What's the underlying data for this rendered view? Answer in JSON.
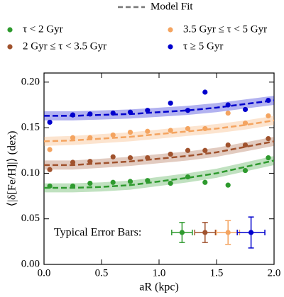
{
  "chart_data": {
    "type": "scatter",
    "xlabel": "aR (kpc)",
    "ylabel": "⟨|δ[Fe/H]|⟩ (dex)",
    "fit_label": "Model Fit",
    "annotation": "Typical Error Bars:",
    "xlim": [
      0,
      2
    ],
    "ylim": [
      0,
      0.21
    ],
    "xticks": [
      {
        "value": 0,
        "label": "0.0"
      },
      0.5,
      {
        "value": 1,
        "label": "1.0"
      },
      1.5,
      {
        "value": 2,
        "label": "2.0"
      }
    ],
    "yticks": [
      {
        "value": 0,
        "label": "0.00"
      },
      0.05,
      {
        "value": 0.1,
        "label": "0.10"
      },
      0.15,
      {
        "value": 0.2,
        "label": "0.20"
      }
    ],
    "x": [
      0.05,
      0.25,
      0.4,
      0.6,
      0.75,
      0.9,
      1.1,
      1.25,
      1.4,
      1.6,
      1.75,
      1.95
    ],
    "fit_x": [
      0,
      0.25,
      0.5,
      0.75,
      1,
      1.25,
      1.5,
      1.75,
      2
    ],
    "fit_color": "#777777",
    "series": [
      {
        "name": "τ < 2 Gyr",
        "color": "#2e9a2e",
        "values": [
          0.086,
          0.086,
          0.089,
          0.09,
          0.091,
          0.092,
          0.089,
          0.096,
          0.09,
          0.087,
          0.103,
          0.117
        ],
        "fit": [
          0.084,
          0.084,
          0.085,
          0.087,
          0.091,
          0.095,
          0.1,
          0.107,
          0.114
        ],
        "fit_band": 0.005,
        "error_x": 1.2,
        "error_y": 0.035,
        "xerr": 0.09,
        "yerr": 0.011
      },
      {
        "name": "2 Gyr ≤ τ < 3.5 Gyr",
        "color": "#a0522d",
        "values": [
          0.104,
          0.112,
          0.113,
          0.118,
          0.117,
          0.117,
          0.121,
          0.125,
          0.125,
          0.131,
          0.131,
          0.138
        ],
        "fit": [
          0.109,
          0.109,
          0.111,
          0.113,
          0.116,
          0.119,
          0.123,
          0.129,
          0.135
        ],
        "fit_band": 0.005,
        "error_x": 1.4,
        "error_y": 0.035,
        "xerr": 0.09,
        "yerr": 0.011
      },
      {
        "name": "3.5 Gyr ≤ τ < 5 Gyr",
        "color": "#f4a460",
        "values": [
          0.126,
          0.139,
          0.139,
          0.142,
          0.145,
          0.146,
          0.147,
          0.149,
          0.149,
          0.166,
          0.155,
          0.163
        ],
        "fit": [
          0.135,
          0.136,
          0.138,
          0.14,
          0.143,
          0.146,
          0.149,
          0.153,
          0.158
        ],
        "fit_band": 0.005,
        "error_x": 1.6,
        "error_y": 0.035,
        "xerr": 0.1,
        "yerr": 0.013
      },
      {
        "name": "τ ≥ 5 Gyr",
        "color": "#0000cd",
        "values": [
          0.156,
          0.164,
          0.165,
          0.166,
          0.167,
          0.169,
          0.177,
          0.169,
          0.189,
          0.175,
          0.17,
          0.18
        ],
        "fit": [
          0.163,
          0.163,
          0.164,
          0.165,
          0.167,
          0.169,
          0.172,
          0.176,
          0.18
        ],
        "fit_band": 0.005,
        "error_x": 1.8,
        "error_y": 0.035,
        "xerr": 0.12,
        "yerr": 0.017
      }
    ]
  }
}
